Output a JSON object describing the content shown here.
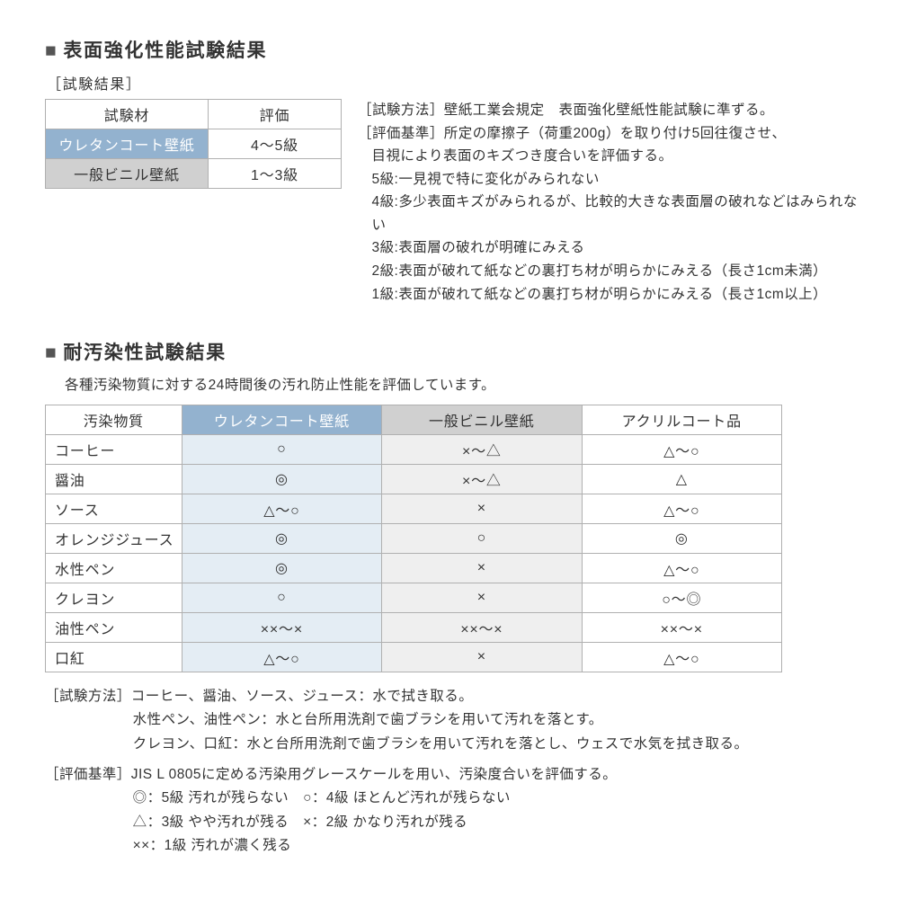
{
  "colors": {
    "header_blue": "#93b2cf",
    "header_gray": "#d0d0d0",
    "col_blue_bg": "#e4edf4",
    "col_gray_bg": "#efefef",
    "border": "#b0b0b0",
    "text": "#333333",
    "white": "#ffffff"
  },
  "section1": {
    "title": "表面強化性能試験結果",
    "sub_label": "［試験結果］",
    "table": {
      "headers": [
        "試験材",
        "評価"
      ],
      "rows": [
        {
          "label": "ウレタンコート壁紙",
          "label_style": "blue",
          "value": "4〜5級"
        },
        {
          "label": "一般ビニル壁紙",
          "label_style": "gray",
          "value": "1〜3級"
        }
      ]
    },
    "method": {
      "line1": "［試験方法］壁紙工業会規定　表面強化壁紙性能試験に準ずる。",
      "line2a": "［評価基準］所定の摩擦子（荷重200g）を取り付け5回往復させ、",
      "line2b": "目視により表面のキズつき度合いを評価する。",
      "g5": "5級:一見視で特に変化がみられない",
      "g4": "4級:多少表面キズがみられるが、比較的大きな表面層の破れなどはみられない",
      "g3": "3級:表面層の破れが明確にみえる",
      "g2": "2級:表面が破れて紙などの裏打ち材が明らかにみえる（長さ1cm未満）",
      "g1": "1級:表面が破れて紙などの裏打ち材が明らかにみえる（長さ1cm以上）"
    }
  },
  "section2": {
    "title": "耐汚染性試験結果",
    "subtitle": "各種汚染物質に対する24時間後の汚れ防止性能を評価しています。",
    "table": {
      "headers": [
        "汚染物質",
        "ウレタンコート壁紙",
        "一般ビニル壁紙",
        "アクリルコート品"
      ],
      "header_styles": [
        "plain",
        "blue",
        "gray",
        "plain"
      ],
      "col_bg": [
        "",
        "blue",
        "gray",
        ""
      ],
      "rows": [
        {
          "label": "コーヒー",
          "c1": "○",
          "c2": "×〜△",
          "c3": "△〜○"
        },
        {
          "label": "醤油",
          "c1": "◎",
          "c2": "×〜△",
          "c3": "△"
        },
        {
          "label": "ソース",
          "c1": "△〜○",
          "c2": "×",
          "c3": "△〜○"
        },
        {
          "label": "オレンジジュース",
          "c1": "◎",
          "c2": "○",
          "c3": "◎"
        },
        {
          "label": "水性ペン",
          "c1": "◎",
          "c2": "×",
          "c3": "△〜○"
        },
        {
          "label": "クレヨン",
          "c1": "○",
          "c2": "×",
          "c3": "○〜◎"
        },
        {
          "label": "油性ペン",
          "c1": "××〜×",
          "c2": "××〜×",
          "c3": "××〜×"
        },
        {
          "label": "口紅",
          "c1": "△〜○",
          "c2": "×",
          "c3": "△〜○"
        }
      ]
    },
    "notes": {
      "m1": "［試験方法］コーヒー、醤油、ソース、ジュース：水で拭き取る。",
      "m2": "水性ペン、油性ペン：水と台所用洗剤で歯ブラシを用いて汚れを落とす。",
      "m3": "クレヨン、口紅：水と台所用洗剤で歯ブラシを用いて汚れを落とし、ウェスで水気を拭き取る。",
      "e1": "［評価基準］JIS L 0805に定める汚染用グレースケールを用い、汚染度合いを評価する。",
      "e2": "◎：5級 汚れが残らない　○：4級 ほとんど汚れが残らない",
      "e3": "△：3級 やや汚れが残る　×：2級 かなり汚れが残る",
      "e4": "××：1級 汚れが濃く残る"
    }
  }
}
